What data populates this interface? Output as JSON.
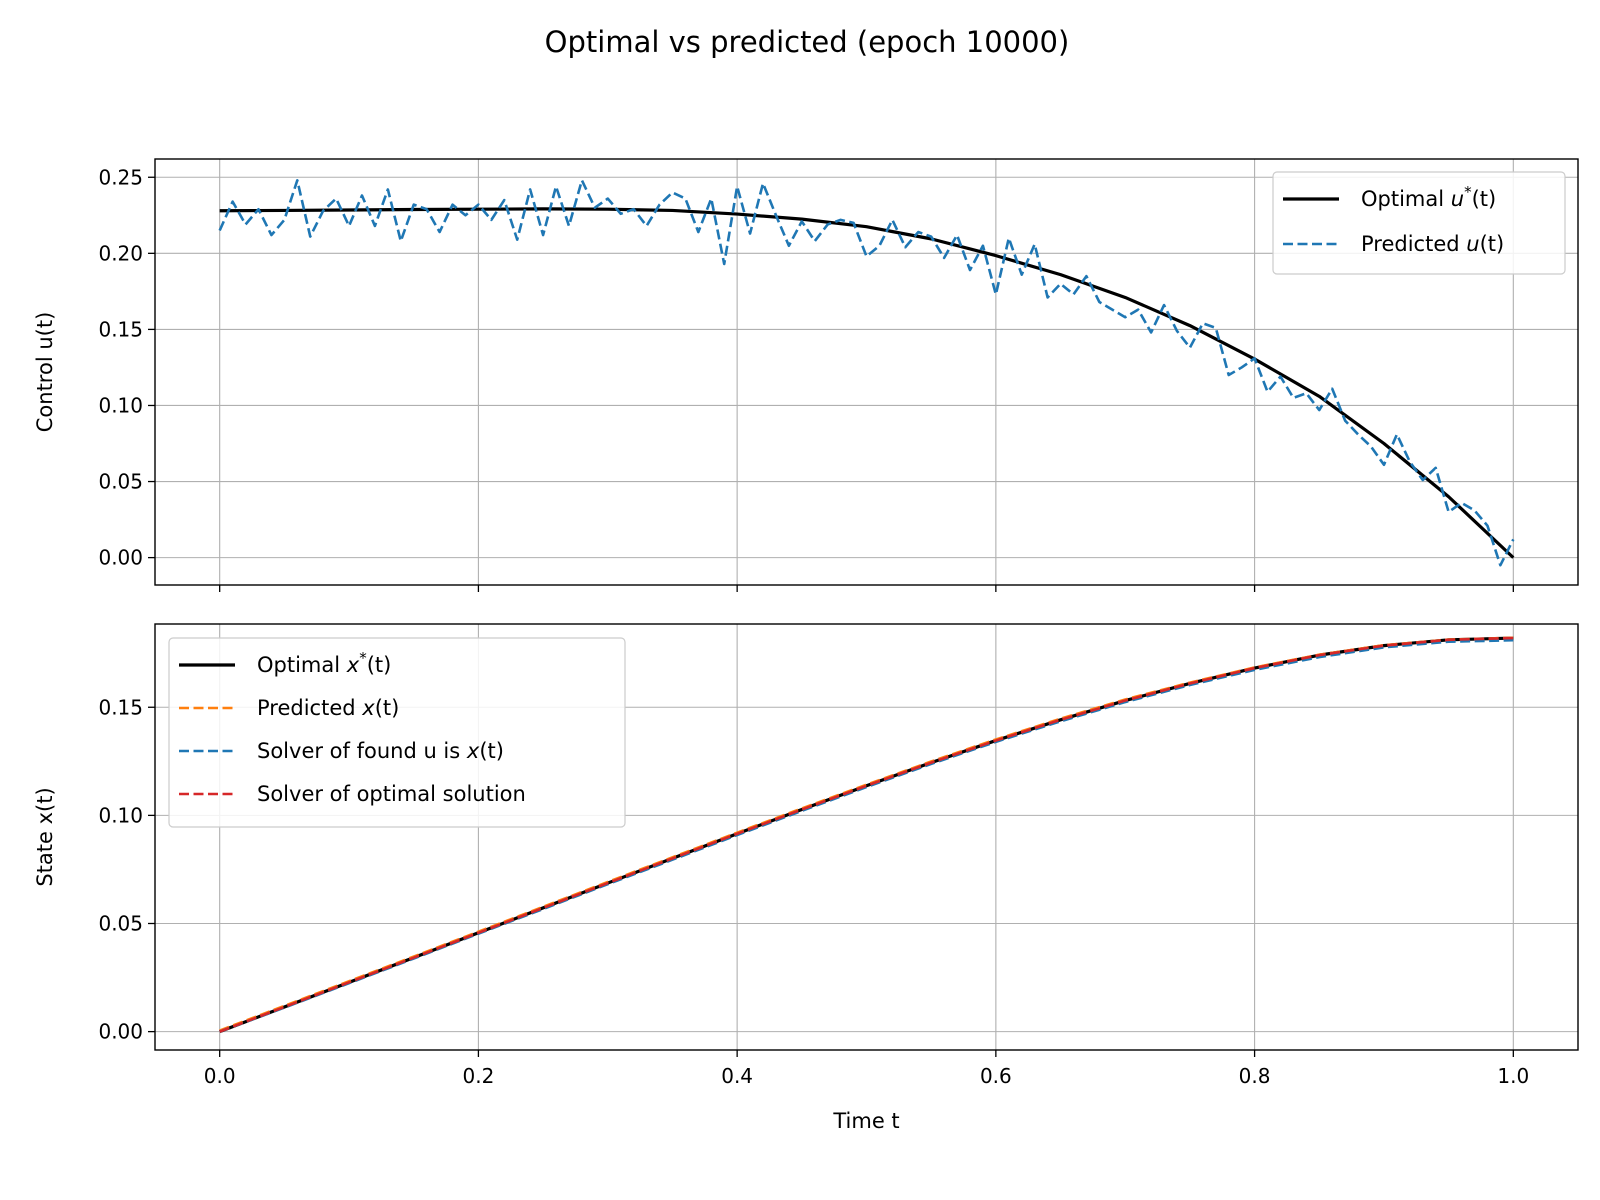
{
  "title": "Optimal vs predicted (epoch 10000)",
  "chart_data": [
    {
      "type": "line",
      "ylabel": "Control u(t)",
      "xlabel": "",
      "xlim": [
        -0.05,
        1.05
      ],
      "ylim": [
        -0.018,
        0.262
      ],
      "xticks": [
        0.0,
        0.2,
        0.4,
        0.6,
        0.8,
        1.0
      ],
      "xtick_labels_visible": false,
      "yticks": [
        0.0,
        0.05,
        0.1,
        0.15,
        0.2,
        0.25
      ],
      "ytick_labels": [
        "0.00",
        "0.05",
        "0.10",
        "0.15",
        "0.20",
        "0.25"
      ],
      "grid": true,
      "legend_position": "upper right",
      "series": [
        {
          "name": "Optimal u*(t)",
          "legend_main": "Optimal ",
          "legend_var": "u",
          "legend_sup": "*",
          "legend_tail": "(t)",
          "color": "#000000",
          "style": "solid",
          "x": [
            0.0,
            0.05,
            0.1,
            0.15,
            0.2,
            0.25,
            0.3,
            0.35,
            0.4,
            0.45,
            0.5,
            0.55,
            0.6,
            0.65,
            0.7,
            0.75,
            0.8,
            0.85,
            0.9,
            0.95,
            1.0
          ],
          "y": [
            0.228,
            0.2282,
            0.2285,
            0.2288,
            0.229,
            0.2292,
            0.229,
            0.2282,
            0.2258,
            0.2225,
            0.2175,
            0.2095,
            0.1985,
            0.186,
            0.171,
            0.1525,
            0.1305,
            0.106,
            0.075,
            0.04,
            0.0
          ]
        },
        {
          "name": "Predicted u(t)",
          "legend_main": "Predicted ",
          "legend_var": "u",
          "legend_sup": "",
          "legend_tail": "(t)",
          "color": "#1f77b4",
          "style": "dashed",
          "x": [
            0.0,
            0.01,
            0.02,
            0.03,
            0.04,
            0.05,
            0.06,
            0.07,
            0.08,
            0.09,
            0.1,
            0.11,
            0.12,
            0.13,
            0.14,
            0.15,
            0.16,
            0.17,
            0.18,
            0.19,
            0.2,
            0.21,
            0.22,
            0.23,
            0.24,
            0.25,
            0.26,
            0.27,
            0.28,
            0.29,
            0.3,
            0.31,
            0.32,
            0.33,
            0.34,
            0.35,
            0.36,
            0.37,
            0.38,
            0.39,
            0.4,
            0.41,
            0.42,
            0.43,
            0.44,
            0.45,
            0.46,
            0.47,
            0.48,
            0.49,
            0.5,
            0.51,
            0.52,
            0.53,
            0.54,
            0.55,
            0.56,
            0.57,
            0.58,
            0.59,
            0.6,
            0.61,
            0.62,
            0.63,
            0.64,
            0.65,
            0.66,
            0.67,
            0.68,
            0.69,
            0.7,
            0.71,
            0.72,
            0.73,
            0.74,
            0.75,
            0.76,
            0.77,
            0.78,
            0.79,
            0.8,
            0.81,
            0.82,
            0.83,
            0.84,
            0.85,
            0.86,
            0.87,
            0.88,
            0.89,
            0.9,
            0.91,
            0.92,
            0.93,
            0.94,
            0.95,
            0.96,
            0.97,
            0.98,
            0.99,
            1.0
          ],
          "y": [
            0.215,
            0.234,
            0.219,
            0.229,
            0.212,
            0.222,
            0.248,
            0.211,
            0.228,
            0.236,
            0.218,
            0.238,
            0.218,
            0.242,
            0.208,
            0.232,
            0.229,
            0.214,
            0.232,
            0.225,
            0.232,
            0.222,
            0.235,
            0.209,
            0.242,
            0.212,
            0.244,
            0.218,
            0.248,
            0.23,
            0.236,
            0.226,
            0.229,
            0.218,
            0.232,
            0.24,
            0.236,
            0.214,
            0.236,
            0.193,
            0.244,
            0.213,
            0.246,
            0.225,
            0.205,
            0.221,
            0.208,
            0.219,
            0.222,
            0.22,
            0.198,
            0.205,
            0.222,
            0.204,
            0.214,
            0.211,
            0.197,
            0.212,
            0.189,
            0.205,
            0.173,
            0.21,
            0.186,
            0.206,
            0.171,
            0.18,
            0.173,
            0.185,
            0.168,
            0.163,
            0.158,
            0.163,
            0.148,
            0.166,
            0.149,
            0.138,
            0.154,
            0.151,
            0.12,
            0.125,
            0.131,
            0.109,
            0.119,
            0.105,
            0.108,
            0.097,
            0.111,
            0.09,
            0.081,
            0.073,
            0.061,
            0.081,
            0.063,
            0.051,
            0.059,
            0.03,
            0.036,
            0.031,
            0.021,
            -0.005,
            0.012
          ]
        }
      ]
    },
    {
      "type": "line",
      "ylabel": "State x(t)",
      "xlabel": "Time t",
      "xlim": [
        -0.05,
        1.05
      ],
      "ylim": [
        -0.0085,
        0.1885
      ],
      "xticks": [
        0.0,
        0.2,
        0.4,
        0.6,
        0.8,
        1.0
      ],
      "xtick_labels": [
        "0.0",
        "0.2",
        "0.4",
        "0.6",
        "0.8",
        "1.0"
      ],
      "xtick_labels_visible": true,
      "yticks": [
        0.0,
        0.05,
        0.1,
        0.15
      ],
      "ytick_labels": [
        "0.00",
        "0.05",
        "0.10",
        "0.15"
      ],
      "grid": true,
      "legend_position": "upper left",
      "series": [
        {
          "name": "Optimal x*(t)",
          "legend_main": "Optimal ",
          "legend_var": "x",
          "legend_sup": "*",
          "legend_tail": "(t)",
          "color": "#000000",
          "style": "solid",
          "x": [
            0.0,
            0.05,
            0.1,
            0.15,
            0.2,
            0.25,
            0.3,
            0.35,
            0.4,
            0.45,
            0.5,
            0.55,
            0.6,
            0.65,
            0.7,
            0.75,
            0.8,
            0.85,
            0.9,
            0.95,
            1.0
          ],
          "y": [
            0.0,
            0.0114,
            0.0228,
            0.0342,
            0.0457,
            0.0572,
            0.0687,
            0.0801,
            0.0915,
            0.1027,
            0.1137,
            0.1244,
            0.1346,
            0.1442,
            0.1531,
            0.161,
            0.1681,
            0.1741,
            0.1785,
            0.1812,
            0.182
          ]
        },
        {
          "name": "Predicted x(t)",
          "legend_main": "Predicted ",
          "legend_var": "x",
          "legend_sup": "",
          "legend_tail": "(t)",
          "color": "#ff7f0e",
          "style": "dashed",
          "x": [
            0.0,
            0.05,
            0.1,
            0.15,
            0.2,
            0.25,
            0.3,
            0.35,
            0.4,
            0.45,
            0.5,
            0.55,
            0.6,
            0.65,
            0.7,
            0.75,
            0.8,
            0.85,
            0.9,
            0.95,
            1.0
          ],
          "y": [
            0.0005,
            0.0119,
            0.0233,
            0.0347,
            0.0462,
            0.0577,
            0.0692,
            0.0806,
            0.092,
            0.1032,
            0.1142,
            0.1249,
            0.1351,
            0.1447,
            0.1536,
            0.1614,
            0.1684,
            0.1743,
            0.1787,
            0.1813,
            0.1821
          ]
        },
        {
          "name": "Solver of found u is x(t)",
          "legend_main": "Solver of found u is ",
          "legend_var": "x",
          "legend_sup": "",
          "legend_tail": "(t)",
          "color": "#1f77b4",
          "style": "dashed",
          "x": [
            0.0,
            0.05,
            0.1,
            0.15,
            0.2,
            0.25,
            0.3,
            0.35,
            0.4,
            0.45,
            0.5,
            0.55,
            0.6,
            0.65,
            0.7,
            0.75,
            0.8,
            0.85,
            0.9,
            0.95,
            1.0
          ],
          "y": [
            0.0,
            0.0111,
            0.0224,
            0.0338,
            0.0453,
            0.0567,
            0.0682,
            0.0795,
            0.0909,
            0.1021,
            0.1131,
            0.1238,
            0.134,
            0.1435,
            0.1524,
            0.1603,
            0.1673,
            0.1732,
            0.1777,
            0.1803,
            0.181
          ]
        },
        {
          "name": "Solver of optimal solution",
          "legend_main": "Solver of optimal solution",
          "legend_var": "",
          "legend_sup": "",
          "legend_tail": "",
          "color": "#d62728",
          "style": "dashed",
          "x": [
            0.0,
            0.05,
            0.1,
            0.15,
            0.2,
            0.25,
            0.3,
            0.35,
            0.4,
            0.45,
            0.5,
            0.55,
            0.6,
            0.65,
            0.7,
            0.75,
            0.8,
            0.85,
            0.9,
            0.95,
            1.0
          ],
          "y": [
            0.0,
            0.0114,
            0.0228,
            0.0342,
            0.0457,
            0.0572,
            0.0687,
            0.0801,
            0.0915,
            0.1027,
            0.1137,
            0.1244,
            0.1346,
            0.1442,
            0.1531,
            0.161,
            0.1681,
            0.1741,
            0.1785,
            0.1812,
            0.182
          ]
        }
      ]
    }
  ]
}
